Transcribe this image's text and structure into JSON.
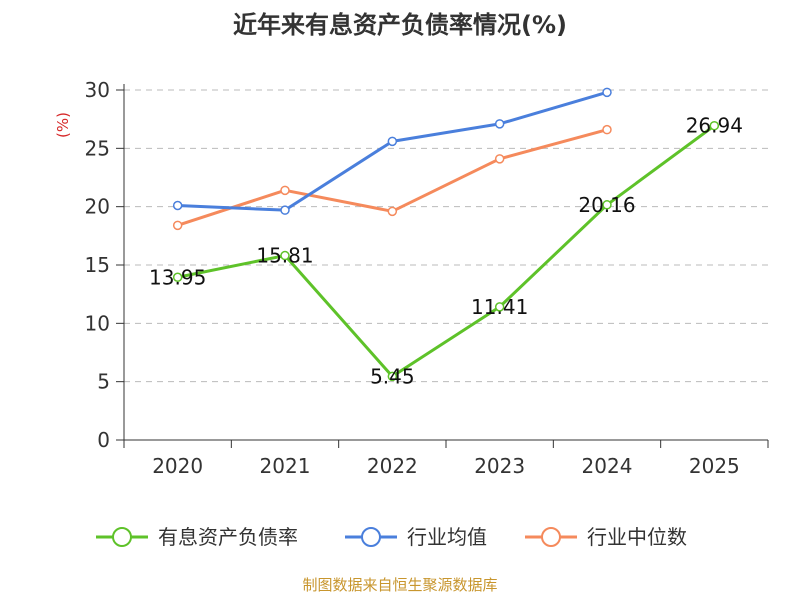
{
  "chart_data": {
    "type": "line",
    "title": "近年来有息资产负债率情况(%)",
    "ylabel": "(%)",
    "xlabel": "",
    "categories": [
      "2020",
      "2021",
      "2022",
      "2023",
      "2024",
      "2025"
    ],
    "ylim": [
      0,
      30
    ],
    "yticks": [
      0,
      5,
      10,
      15,
      20,
      25,
      30
    ],
    "grid": true,
    "legend_position": "bottom",
    "series": [
      {
        "name": "有息资产负债率",
        "color": "#5ec229",
        "values": [
          13.95,
          15.81,
          5.45,
          11.41,
          20.16,
          26.94
        ],
        "labels": [
          "13.95",
          "15.81",
          "5.45",
          "11.41",
          "20.16",
          "26.94"
        ]
      },
      {
        "name": "行业均值",
        "color": "#4a7fdc",
        "values": [
          20.1,
          19.7,
          25.6,
          27.1,
          29.8,
          null
        ]
      },
      {
        "name": "行业中位数",
        "color": "#f58a5c",
        "values": [
          18.4,
          21.4,
          19.6,
          24.1,
          26.6,
          null
        ]
      }
    ],
    "source": "制图数据来自恒生聚源数据库"
  }
}
